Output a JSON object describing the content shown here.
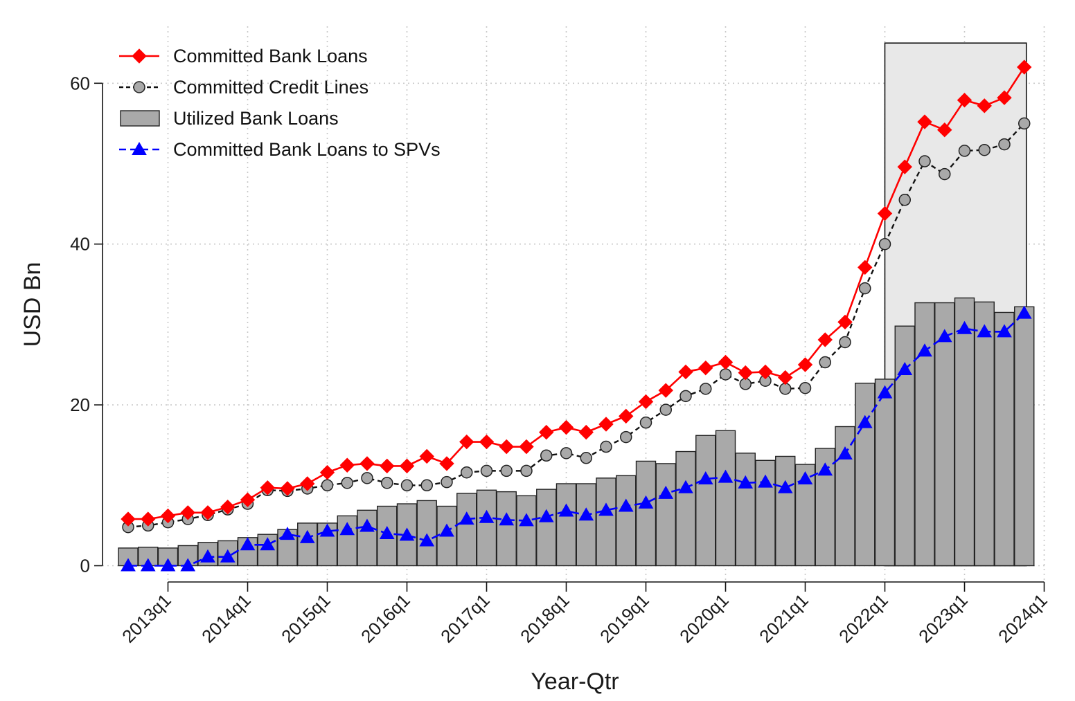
{
  "chart_data": {
    "type": "bar",
    "xlabel": "Year-Qtr",
    "ylabel": "USD Bn",
    "ylim": [
      0,
      65
    ],
    "yticks": [
      0,
      20,
      40,
      60
    ],
    "xtick_labels": [
      "2013q1",
      "2014q1",
      "2015q1",
      "2016q1",
      "2017q1",
      "2018q1",
      "2019q1",
      "2020q1",
      "2021q1",
      "2022q1",
      "2023q1",
      "2024q1"
    ],
    "grid": true,
    "legend_position": "top-left",
    "categories": [
      "2012q3",
      "2012q4",
      "2013q1",
      "2013q2",
      "2013q3",
      "2013q4",
      "2014q1",
      "2014q2",
      "2014q3",
      "2014q4",
      "2015q1",
      "2015q2",
      "2015q3",
      "2015q4",
      "2016q1",
      "2016q2",
      "2016q3",
      "2016q4",
      "2017q1",
      "2017q2",
      "2017q3",
      "2017q4",
      "2018q1",
      "2018q2",
      "2018q3",
      "2018q4",
      "2019q1",
      "2019q2",
      "2019q3",
      "2019q4",
      "2020q1",
      "2020q2",
      "2020q3",
      "2020q4",
      "2021q1",
      "2021q2",
      "2021q3",
      "2021q4",
      "2022q1",
      "2022q2",
      "2022q3",
      "2022q4",
      "2023q1",
      "2023q2",
      "2023q3",
      "2023q4"
    ],
    "highlight_region": {
      "from": "2022q1",
      "to": "2023q4",
      "top": 65
    },
    "series": [
      {
        "name": "Committed Bank Loans",
        "kind": "line",
        "color": "#ff0000",
        "marker": "diamond",
        "values": [
          5.8,
          5.8,
          6.2,
          6.6,
          6.6,
          7.3,
          8.2,
          9.7,
          9.6,
          10.2,
          11.6,
          12.5,
          12.7,
          12.4,
          12.4,
          13.6,
          12.7,
          15.4,
          15.4,
          14.8,
          14.8,
          16.6,
          17.2,
          16.6,
          17.6,
          18.6,
          20.4,
          21.8,
          24.1,
          24.6,
          25.3,
          24.0,
          24.1,
          23.4,
          25.0,
          28.1,
          30.3,
          37.1,
          43.8,
          49.6,
          55.2,
          54.2,
          57.9,
          57.2,
          58.2,
          62.0
        ]
      },
      {
        "name": "Committed Credit Lines",
        "kind": "line",
        "color": "#111111",
        "marker": "circle",
        "values": [
          4.8,
          5.0,
          5.4,
          5.8,
          6.3,
          7.0,
          7.7,
          9.4,
          9.3,
          9.6,
          10.0,
          10.3,
          10.9,
          10.3,
          10.0,
          10.0,
          10.4,
          11.6,
          11.8,
          11.8,
          11.8,
          13.7,
          14.0,
          13.4,
          14.8,
          16.0,
          17.8,
          19.4,
          21.1,
          22.0,
          23.8,
          22.6,
          23.0,
          22.0,
          22.1,
          25.3,
          27.8,
          34.5,
          40.0,
          45.5,
          50.3,
          48.7,
          51.6,
          51.7,
          52.4,
          55.0
        ]
      },
      {
        "name": "Utilized Bank Loans",
        "kind": "bar",
        "color": "#a9a9a9",
        "values": [
          2.2,
          2.3,
          2.2,
          2.5,
          2.9,
          3.1,
          3.5,
          3.9,
          4.5,
          5.3,
          5.3,
          6.2,
          6.9,
          7.4,
          7.7,
          8.1,
          7.4,
          9.0,
          9.4,
          9.2,
          8.7,
          9.5,
          10.2,
          10.2,
          10.9,
          11.2,
          13.0,
          12.7,
          14.2,
          16.2,
          16.8,
          14.0,
          13.1,
          13.6,
          12.6,
          14.6,
          17.3,
          22.7,
          23.2,
          29.8,
          32.7,
          32.7,
          33.3,
          32.8,
          31.5,
          32.2
        ]
      },
      {
        "name": "Committed Bank Loans to SPVs",
        "kind": "line",
        "color": "#0000ff",
        "marker": "triangle",
        "values": [
          0.0,
          0.0,
          0.0,
          0.0,
          1.1,
          1.1,
          2.6,
          2.6,
          3.9,
          3.5,
          4.3,
          4.5,
          4.9,
          4.0,
          3.8,
          3.1,
          4.3,
          5.8,
          6.0,
          5.7,
          5.6,
          6.1,
          6.8,
          6.3,
          6.9,
          7.4,
          7.8,
          9.0,
          9.7,
          10.8,
          11.0,
          10.3,
          10.4,
          9.7,
          10.8,
          11.9,
          13.9,
          17.8,
          21.5,
          24.4,
          26.7,
          28.5,
          29.5,
          29.1,
          29.1,
          31.4
        ]
      }
    ]
  }
}
